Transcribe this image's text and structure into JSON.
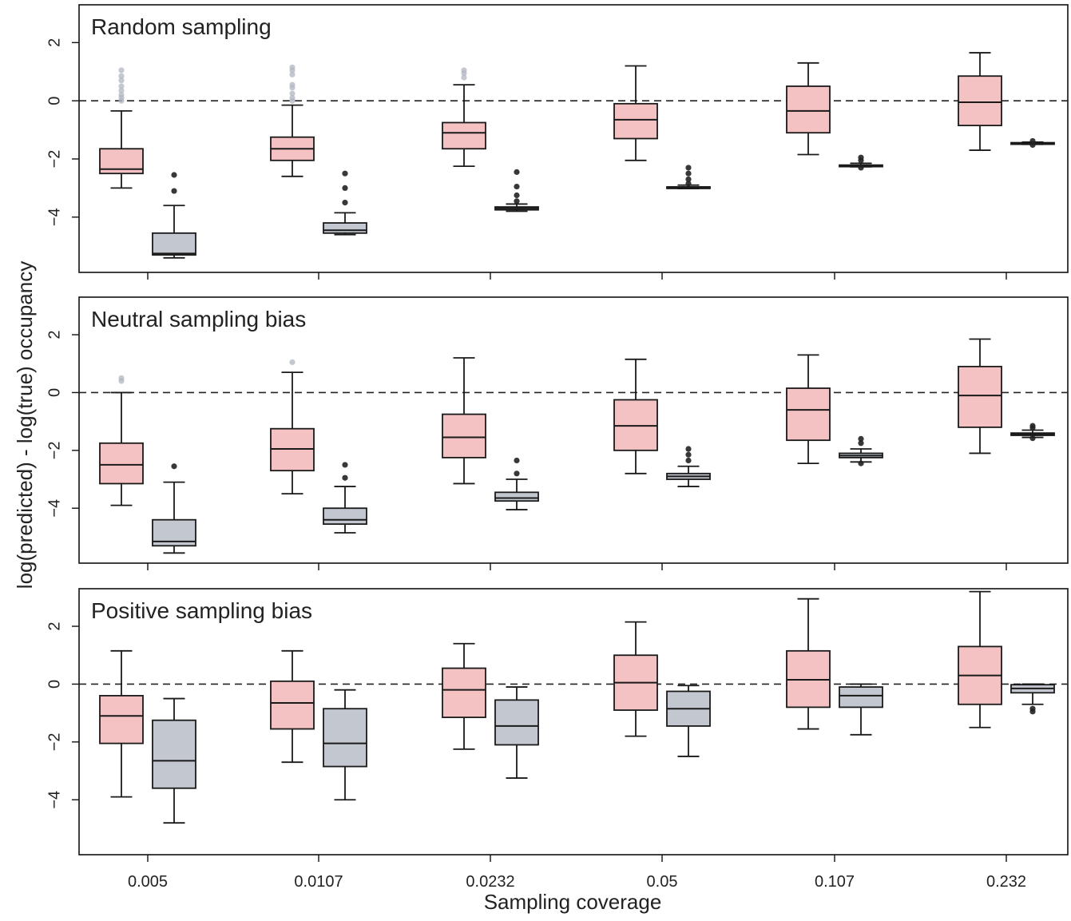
{
  "figure": {
    "ylabel": "log(predicted) - log(true) occupancy",
    "xlabel": "Sampling coverage"
  },
  "colors": {
    "pink": "#f4c2c2",
    "gray": "#c3c8d0",
    "stroke": "#1a1a1a",
    "outlier_pink": "#b0b6c0",
    "outlier_gray": "#222222"
  },
  "chart_data": [
    {
      "type": "box",
      "title": "Random sampling",
      "categories": [
        "0.005",
        "0.0107",
        "0.0232",
        "0.05",
        "0.107",
        "0.232"
      ],
      "ylim": [
        -5.9,
        3.3
      ],
      "yticks": [
        2,
        0,
        -2,
        -4
      ],
      "reference_line": 0,
      "series": [
        {
          "color": "pink",
          "boxes": [
            {
              "whislo": -3.0,
              "q1": -2.5,
              "med": -2.35,
              "q3": -1.65,
              "whishi": -0.35,
              "fliers": [
                0.0,
                0.1,
                0.2,
                0.35,
                0.5,
                0.7,
                0.85,
                1.05
              ]
            },
            {
              "whislo": -2.6,
              "q1": -2.05,
              "med": -1.65,
              "q3": -1.25,
              "whishi": -0.15,
              "fliers": [
                0.0,
                0.1,
                0.25,
                0.45,
                0.55,
                0.9,
                1.05,
                1.15
              ]
            },
            {
              "whislo": -2.25,
              "q1": -1.65,
              "med": -1.1,
              "q3": -0.75,
              "whishi": 0.55,
              "fliers": [
                0.8,
                0.95,
                1.05
              ]
            },
            {
              "whislo": -2.05,
              "q1": -1.3,
              "med": -0.65,
              "q3": -0.1,
              "whishi": 1.2,
              "fliers": []
            },
            {
              "whislo": -1.85,
              "q1": -1.1,
              "med": -0.35,
              "q3": 0.5,
              "whishi": 1.3,
              "fliers": []
            },
            {
              "whislo": -1.7,
              "q1": -0.85,
              "med": -0.05,
              "q3": 0.85,
              "whishi": 1.65,
              "fliers": []
            }
          ]
        },
        {
          "color": "gray",
          "boxes": [
            {
              "whislo": -5.4,
              "q1": -5.3,
              "med": -5.25,
              "q3": -4.55,
              "whishi": -3.6,
              "fliers": [
                -2.55,
                -3.1
              ]
            },
            {
              "whislo": -4.6,
              "q1": -4.55,
              "med": -4.45,
              "q3": -4.2,
              "whishi": -3.85,
              "fliers": [
                -2.5,
                -3.0,
                -3.5
              ]
            },
            {
              "whislo": -3.8,
              "q1": -3.75,
              "med": -3.7,
              "q3": -3.65,
              "whishi": -3.55,
              "fliers": [
                -2.45,
                -2.95,
                -3.25,
                -3.45
              ]
            },
            {
              "whislo": -3.02,
              "q1": -3.0,
              "med": -2.98,
              "q3": -2.96,
              "whishi": -2.9,
              "fliers": [
                -2.3,
                -2.5,
                -2.7,
                -2.85
              ]
            },
            {
              "whislo": -2.27,
              "q1": -2.25,
              "med": -2.23,
              "q3": -2.21,
              "whishi": -2.15,
              "fliers": [
                -1.95,
                -2.05,
                -2.3
              ]
            },
            {
              "whislo": -1.5,
              "q1": -1.48,
              "med": -1.46,
              "q3": -1.44,
              "whishi": -1.42,
              "fliers": [
                -1.38,
                -1.52
              ]
            }
          ]
        }
      ]
    },
    {
      "type": "box",
      "title": "Neutral sampling bias",
      "categories": [
        "0.005",
        "0.0107",
        "0.0232",
        "0.05",
        "0.107",
        "0.232"
      ],
      "ylim": [
        -5.9,
        3.3
      ],
      "yticks": [
        2,
        0,
        -2,
        -4
      ],
      "reference_line": 0,
      "series": [
        {
          "color": "pink",
          "boxes": [
            {
              "whislo": -3.9,
              "q1": -3.15,
              "med": -2.5,
              "q3": -1.75,
              "whishi": 0.0,
              "fliers": [
                0.4,
                0.5
              ]
            },
            {
              "whislo": -3.5,
              "q1": -2.7,
              "med": -1.95,
              "q3": -1.25,
              "whishi": 0.7,
              "fliers": [
                1.05
              ]
            },
            {
              "whislo": -3.15,
              "q1": -2.25,
              "med": -1.55,
              "q3": -0.75,
              "whishi": 1.2,
              "fliers": []
            },
            {
              "whislo": -2.8,
              "q1": -2.0,
              "med": -1.15,
              "q3": -0.25,
              "whishi": 1.15,
              "fliers": []
            },
            {
              "whislo": -2.45,
              "q1": -1.65,
              "med": -0.6,
              "q3": 0.15,
              "whishi": 1.3,
              "fliers": []
            },
            {
              "whislo": -2.1,
              "q1": -1.2,
              "med": -0.1,
              "q3": 0.9,
              "whishi": 1.85,
              "fliers": []
            }
          ]
        },
        {
          "color": "gray",
          "boxes": [
            {
              "whislo": -5.55,
              "q1": -5.3,
              "med": -5.15,
              "q3": -4.4,
              "whishi": -3.1,
              "fliers": [
                -2.55
              ]
            },
            {
              "whislo": -4.85,
              "q1": -4.55,
              "med": -4.4,
              "q3": -4.0,
              "whishi": -3.25,
              "fliers": [
                -2.5,
                -2.95
              ]
            },
            {
              "whislo": -4.05,
              "q1": -3.75,
              "med": -3.65,
              "q3": -3.45,
              "whishi": -3.0,
              "fliers": [
                -2.35,
                -2.8
              ]
            },
            {
              "whislo": -3.25,
              "q1": -3.0,
              "med": -2.9,
              "q3": -2.8,
              "whishi": -2.55,
              "fliers": [
                -1.95,
                -2.15,
                -2.35
              ]
            },
            {
              "whislo": -2.4,
              "q1": -2.25,
              "med": -2.18,
              "q3": -2.1,
              "whishi": -1.95,
              "fliers": [
                -1.6,
                -1.75,
                -2.45
              ]
            },
            {
              "whislo": -1.55,
              "q1": -1.48,
              "med": -1.44,
              "q3": -1.4,
              "whishi": -1.3,
              "fliers": [
                -1.15,
                -1.22,
                -1.58
              ]
            }
          ]
        }
      ]
    },
    {
      "type": "box",
      "title": "Positive sampling bias",
      "categories": [
        "0.005",
        "0.0107",
        "0.0232",
        "0.05",
        "0.107",
        "0.232"
      ],
      "ylim": [
        -5.9,
        3.3
      ],
      "yticks": [
        2,
        0,
        -2,
        -4
      ],
      "reference_line": 0,
      "series": [
        {
          "color": "pink",
          "boxes": [
            {
              "whislo": -3.9,
              "q1": -2.05,
              "med": -1.1,
              "q3": -0.4,
              "whishi": 1.15,
              "fliers": []
            },
            {
              "whislo": -2.7,
              "q1": -1.55,
              "med": -0.65,
              "q3": 0.1,
              "whishi": 1.15,
              "fliers": []
            },
            {
              "whislo": -2.25,
              "q1": -1.15,
              "med": -0.2,
              "q3": 0.55,
              "whishi": 1.4,
              "fliers": []
            },
            {
              "whislo": -1.8,
              "q1": -0.9,
              "med": 0.05,
              "q3": 1.0,
              "whishi": 2.15,
              "fliers": []
            },
            {
              "whislo": -1.55,
              "q1": -0.8,
              "med": 0.15,
              "q3": 1.15,
              "whishi": 2.95,
              "fliers": []
            },
            {
              "whislo": -1.5,
              "q1": -0.7,
              "med": 0.3,
              "q3": 1.3,
              "whishi": 3.2,
              "fliers": []
            }
          ]
        },
        {
          "color": "gray",
          "boxes": [
            {
              "whislo": -4.8,
              "q1": -3.6,
              "med": -2.65,
              "q3": -1.25,
              "whishi": -0.5,
              "fliers": []
            },
            {
              "whislo": -4.0,
              "q1": -2.85,
              "med": -2.05,
              "q3": -0.85,
              "whishi": -0.2,
              "fliers": []
            },
            {
              "whislo": -3.25,
              "q1": -2.1,
              "med": -1.45,
              "q3": -0.55,
              "whishi": -0.1,
              "fliers": []
            },
            {
              "whislo": -2.5,
              "q1": -1.45,
              "med": -0.85,
              "q3": -0.25,
              "whishi": -0.05,
              "fliers": []
            },
            {
              "whislo": -1.75,
              "q1": -0.8,
              "med": -0.4,
              "q3": -0.1,
              "whishi": 0.0,
              "fliers": []
            },
            {
              "whislo": -0.7,
              "q1": -0.3,
              "med": -0.15,
              "q3": -0.02,
              "whishi": 0.0,
              "fliers": [
                -0.85,
                -0.95
              ]
            }
          ]
        }
      ]
    }
  ]
}
